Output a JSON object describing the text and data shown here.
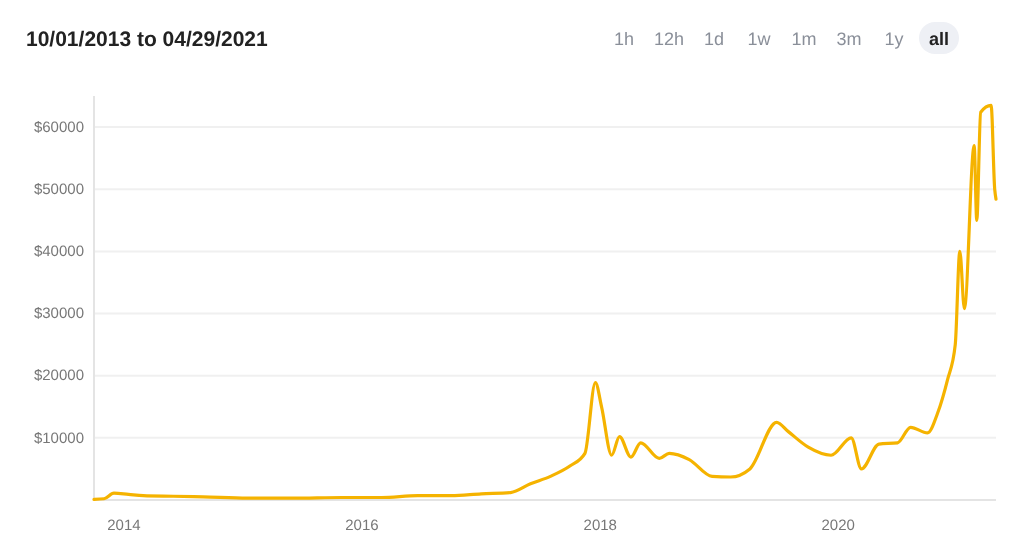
{
  "chart_data": {
    "type": "line",
    "title": "10/01/2013 to 04/29/2021",
    "annotations": [
      "1h",
      "12h",
      "1d",
      "1w",
      "1m",
      "3m",
      "1y",
      "all"
    ],
    "x": [
      "2013-10-01",
      "2013-11-01",
      "2013-12-01",
      "2014-01-15",
      "2014-03-01",
      "2014-06-01",
      "2014-09-01",
      "2015-01-15",
      "2015-06-01",
      "2015-11-01",
      "2016-03-01",
      "2016-06-20",
      "2016-10-01",
      "2017-01-01",
      "2017-04-01",
      "2017-06-01",
      "2017-08-01",
      "2017-10-01",
      "2017-11-15",
      "2017-12-17",
      "2018-01-05",
      "2018-02-05",
      "2018-03-01",
      "2018-04-05",
      "2018-05-05",
      "2018-07-01",
      "2018-08-01",
      "2018-10-01",
      "2018-12-10",
      "2019-02-05",
      "2019-04-05",
      "2019-06-26",
      "2019-08-01",
      "2019-10-01",
      "2019-12-10",
      "2020-02-10",
      "2020-03-12",
      "2020-05-05",
      "2020-07-01",
      "2020-08-10",
      "2020-10-01",
      "2020-11-01",
      "2020-12-01",
      "2020-12-25",
      "2021-01-08",
      "2021-01-22",
      "2021-02-21",
      "2021-03-01",
      "2021-03-13",
      "2021-04-14",
      "2021-04-25",
      "2021-04-29"
    ],
    "series": [
      {
        "color": "#f5b300",
        "values": [
          100,
          200,
          1100,
          900,
          700,
          600,
          500,
          300,
          300,
          400,
          400,
          700,
          700,
          1000,
          1200,
          2600,
          3800,
          5500,
          7500,
          18900,
          15000,
          7200,
          10200,
          6900,
          9200,
          6700,
          7500,
          6500,
          3800,
          3700,
          5000,
          12500,
          11000,
          8500,
          7200,
          10000,
          5000,
          9000,
          9200,
          11700,
          10800,
          14000,
          19300,
          25000,
          40000,
          30800,
          57000,
          45000,
          62400,
          63500,
          50000,
          48400
        ]
      }
    ],
    "xlim": [
      "2013-10-01",
      "2021-04-29"
    ],
    "xticks": [
      "2014",
      "2016",
      "2018",
      "2020"
    ],
    "ylim": [
      0,
      65000
    ],
    "yticks": [
      {
        "value": 10000,
        "label": "$10000"
      },
      {
        "value": 20000,
        "label": "$20000"
      },
      {
        "value": 30000,
        "label": "$30000"
      },
      {
        "value": 40000,
        "label": "$40000"
      },
      {
        "value": 50000,
        "label": "$50000"
      },
      {
        "value": 60000,
        "label": "$60000"
      }
    ],
    "grid": "y"
  }
}
